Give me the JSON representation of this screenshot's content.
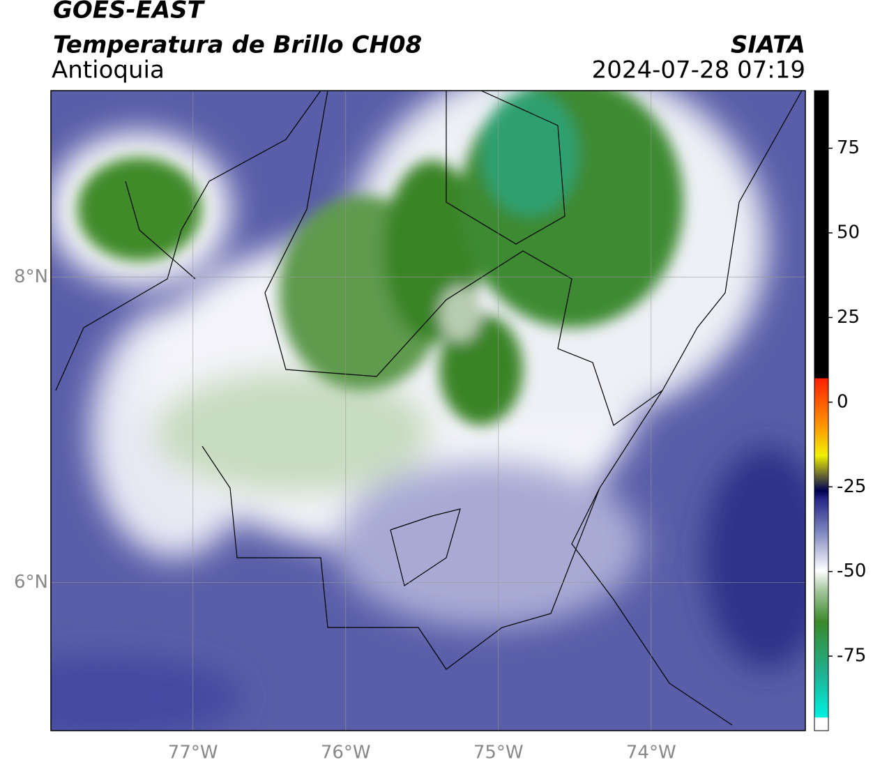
{
  "header": {
    "satellite": "GOES-EAST",
    "product": "Temperatura de Brillo CH08",
    "region": "Antioquia",
    "agency": "SIATA",
    "timestamp": "2024-07-28 07:19"
  },
  "map": {
    "xlim": [
      -77.93,
      -72.99
    ],
    "ylim": [
      5.03,
      9.22
    ],
    "xticks": [
      {
        "value": -77,
        "label": "77°W"
      },
      {
        "value": -76,
        "label": "76°W"
      },
      {
        "value": -75,
        "label": "75°W"
      },
      {
        "value": -74,
        "label": "74°W"
      }
    ],
    "yticks": [
      {
        "value": 6,
        "label": "6°N"
      },
      {
        "value": 8,
        "label": "8°N"
      }
    ]
  },
  "colorbar": {
    "lim": [
      -97,
      92
    ],
    "ticks": [
      -75,
      -50,
      -25,
      0,
      25,
      50,
      75
    ]
  }
}
